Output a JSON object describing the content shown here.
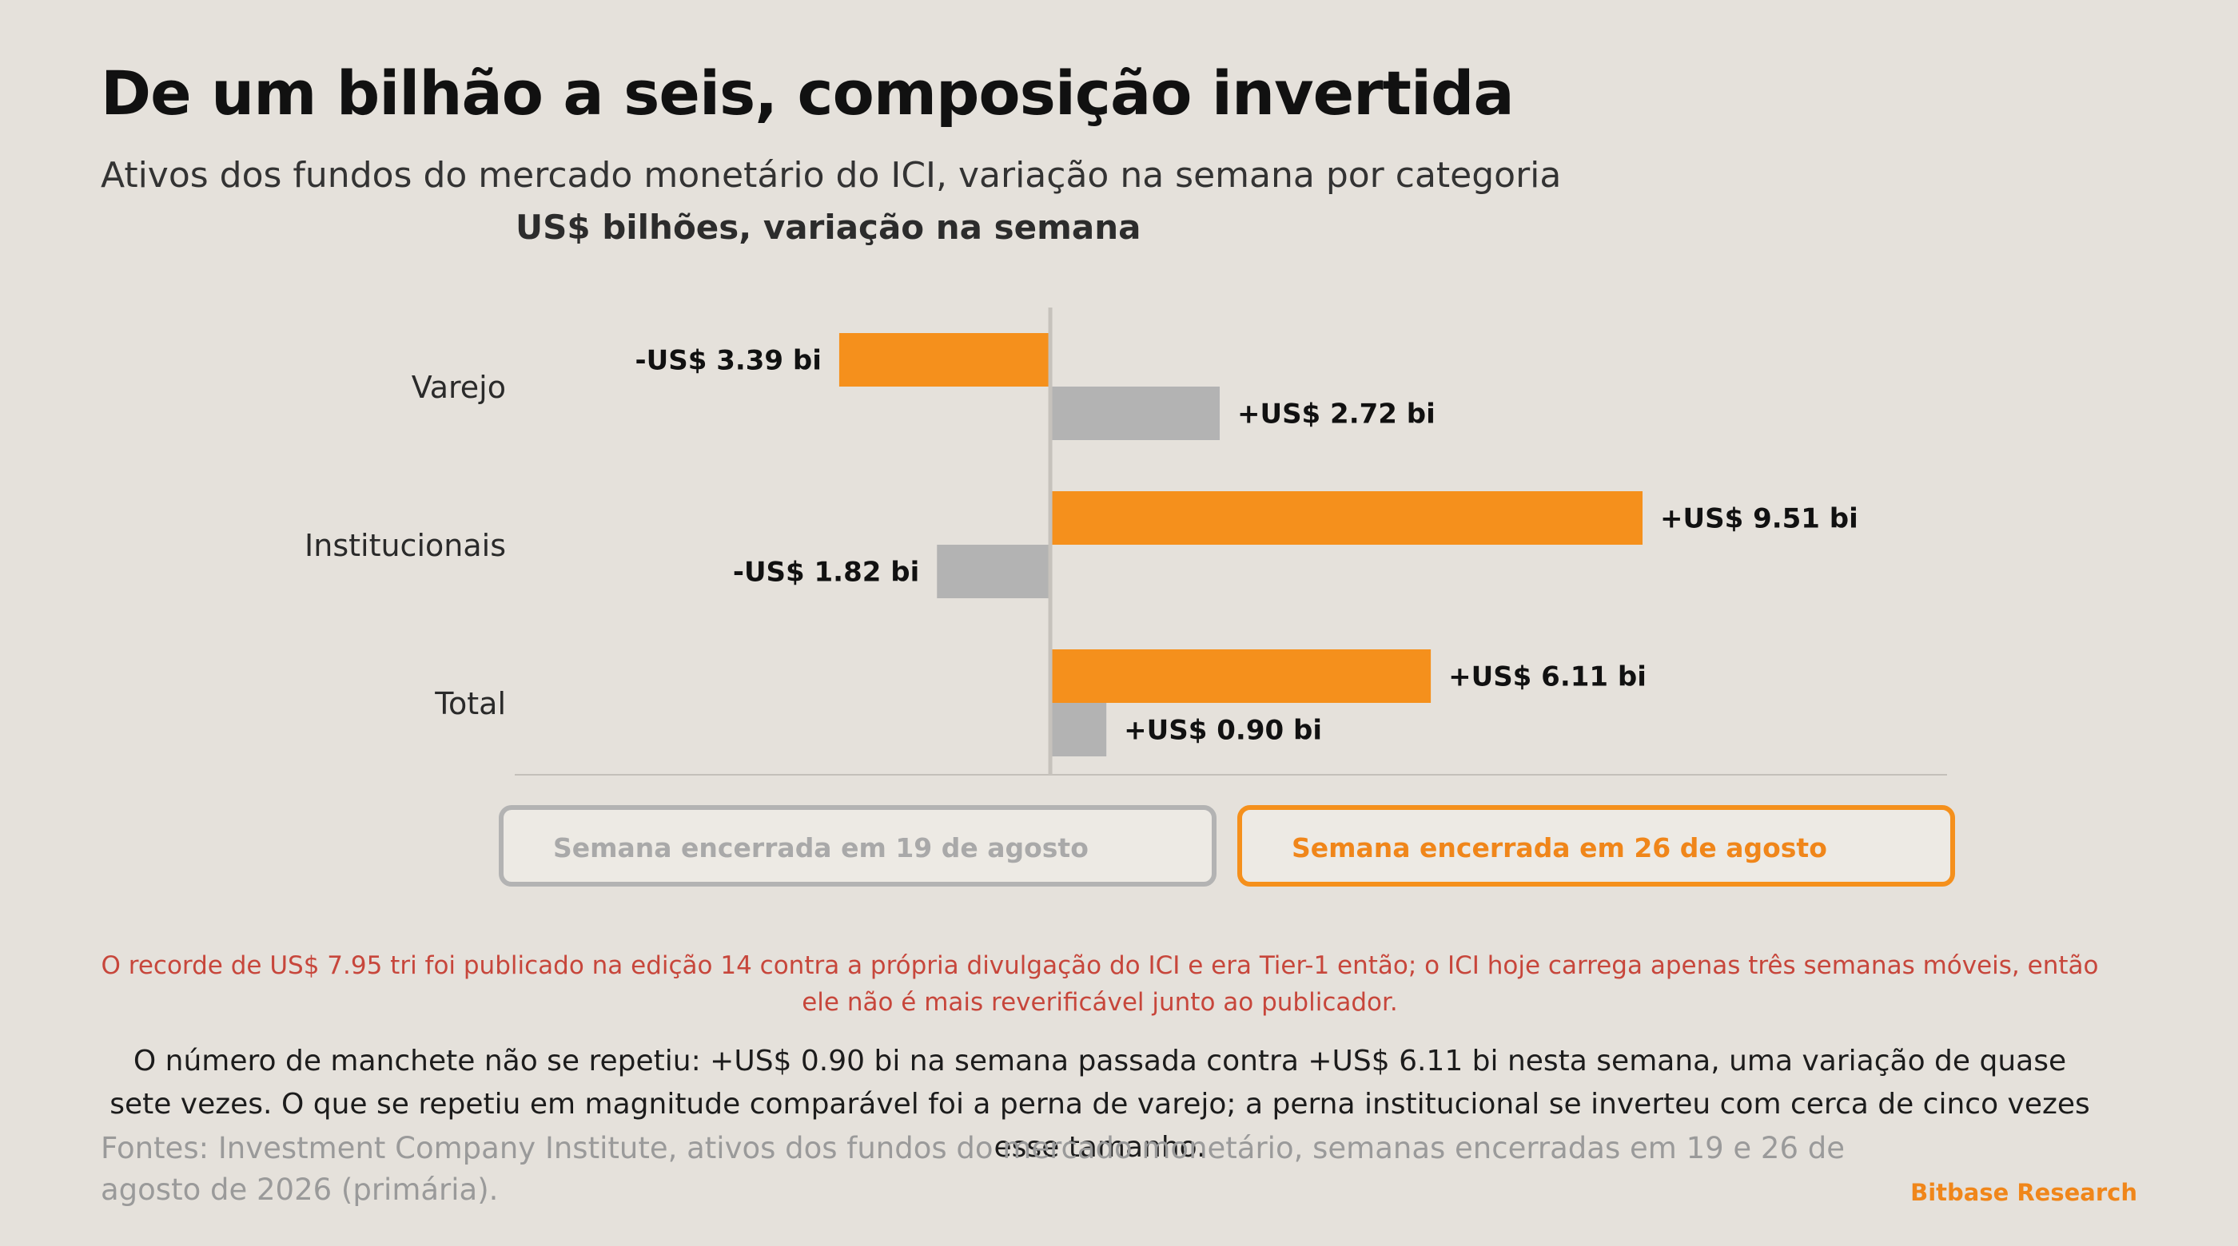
{
  "title": "De um bilhão a seis, composição invertida",
  "subtitle": "Ativos dos fundos do mercado monetário do ICI, variação na semana por categoria",
  "unit_label": "US$ bilhões, variação na semana",
  "legend": {
    "previous": "Semana encerrada em 19 de agosto",
    "current": "Semana encerrada em 26 de agosto"
  },
  "colors": {
    "current": "#f5901c",
    "previous": "#b3b3b3",
    "background": "#e5e1db",
    "note": "#c7463b",
    "brand": "#f0861a"
  },
  "chart_data": {
    "type": "bar",
    "orientation": "horizontal",
    "categories": [
      "Varejo",
      "Institucionais",
      "Total"
    ],
    "series": [
      {
        "name": "Semana encerrada em 26 de agosto",
        "values": [
          -3.39,
          9.51,
          6.11
        ],
        "labels": [
          "-US$ 3.39 bi",
          "+US$ 9.51 bi",
          "+US$ 6.11 bi"
        ]
      },
      {
        "name": "Semana encerrada em 19 de agosto",
        "values": [
          2.72,
          -1.82,
          0.9
        ],
        "labels": [
          "+US$ 2.72 bi",
          "-US$ 1.82 bi",
          "+US$ 0.90 bi"
        ]
      }
    ],
    "xlim": [
      -8.6,
      14.4
    ],
    "grid": false,
    "legend_position": "bottom"
  },
  "notes": {
    "correction": "O recorde de US$ 7.95 tri foi publicado na edição 14 contra a própria divulgação do ICI e era Tier-1 então; o ICI hoje carrega apenas três semanas móveis, então ele não é mais reverificável junto ao publicador.",
    "body": "O número de manchete não se repetiu: +US$ 0.90 bi na semana passada contra +US$ 6.11 bi nesta semana, uma variação de quase sete vezes. O que se repetiu em magnitude comparável foi a perna de varejo; a perna institucional se inverteu com cerca de cinco vezes esse tamanho."
  },
  "source": "Fontes: Investment Company Institute, ativos dos fundos do mercado monetário, semanas encerradas em 19 e 26 de agosto de 2026 (primária).",
  "brand": "Bitbase Research"
}
